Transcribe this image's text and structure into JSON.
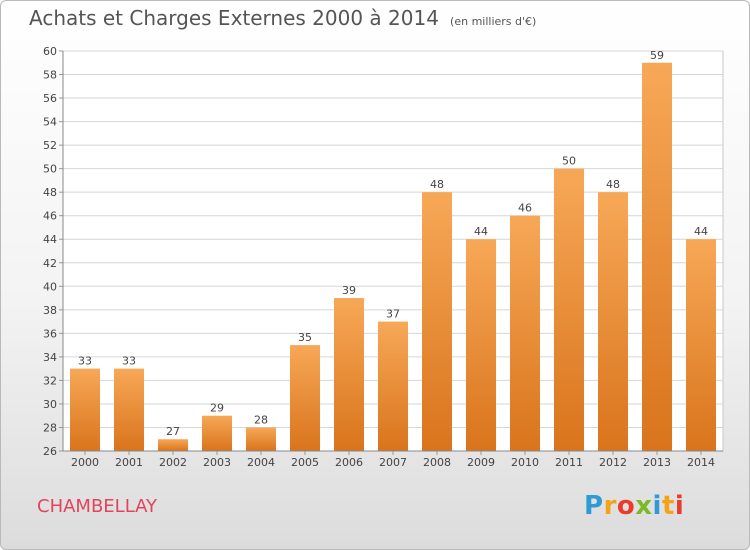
{
  "chart_data": {
    "type": "bar",
    "title": "Achats et Charges Externes 2000 à 2014",
    "unit_label": "(en milliers d'€)",
    "categories": [
      "2000",
      "2001",
      "2002",
      "2003",
      "2004",
      "2005",
      "2006",
      "2007",
      "2008",
      "2009",
      "2010",
      "2011",
      "2012",
      "2013",
      "2014"
    ],
    "values": [
      33,
      33,
      27,
      29,
      28,
      35,
      39,
      37,
      48,
      44,
      46,
      50,
      48,
      59,
      44
    ],
    "ylim": [
      26,
      60
    ],
    "yticks": [
      26,
      28,
      30,
      32,
      34,
      36,
      38,
      40,
      42,
      44,
      46,
      48,
      50,
      52,
      54,
      56,
      58,
      60
    ],
    "grid": true,
    "bar_color_top": "#f7a857",
    "bar_color_bottom": "#d9741c"
  },
  "footer": {
    "commune": "CHAMBELLAY",
    "logo_letters": [
      "P",
      "r",
      "o",
      "x",
      "i",
      "t",
      "i"
    ],
    "logo_colors": [
      "#2e9ad6",
      "#f2a31a",
      "#e83c2c",
      "#7cb928",
      "#2e9ad6",
      "#f2a31a",
      "#e83c2c"
    ]
  }
}
